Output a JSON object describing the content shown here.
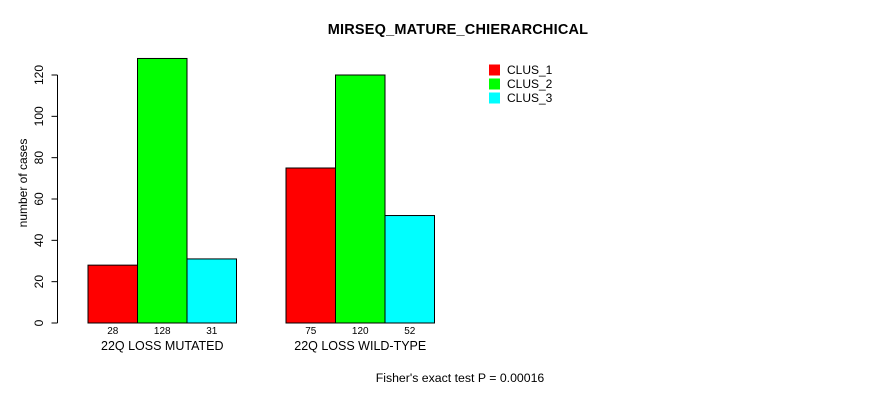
{
  "chart_data": {
    "type": "bar",
    "title": "MIRSEQ_MATURE_CHIERARCHICAL",
    "categories": [
      "22Q LOSS MUTATED",
      "22Q LOSS WILD-TYPE"
    ],
    "series": [
      {
        "name": "CLUS_1",
        "color": "#ff0000",
        "values": [
          28,
          75
        ]
      },
      {
        "name": "CLUS_2",
        "color": "#00ff00",
        "values": [
          128,
          120
        ]
      },
      {
        "name": "CLUS_3",
        "color": "#00ffff",
        "values": [
          31,
          52
        ]
      }
    ],
    "xlabel": "",
    "ylabel": "number of cases",
    "yticks": [
      0,
      20,
      40,
      60,
      80,
      100,
      120
    ],
    "ylim": [
      0,
      128
    ],
    "grid": false,
    "bar_value_labels_shown": true,
    "legend_position": "top-right",
    "legend_entries": [
      "CLUS_1",
      "CLUS_2",
      "CLUS_3"
    ],
    "annotation": "Fisher's exact test P = 0.00016",
    "colors": {
      "CLUS_1": "#ff0000",
      "CLUS_2": "#00ff00",
      "CLUS_3": "#00ffff",
      "bar_border": "#000000",
      "axis": "#000000",
      "background": "#ffffff"
    }
  }
}
